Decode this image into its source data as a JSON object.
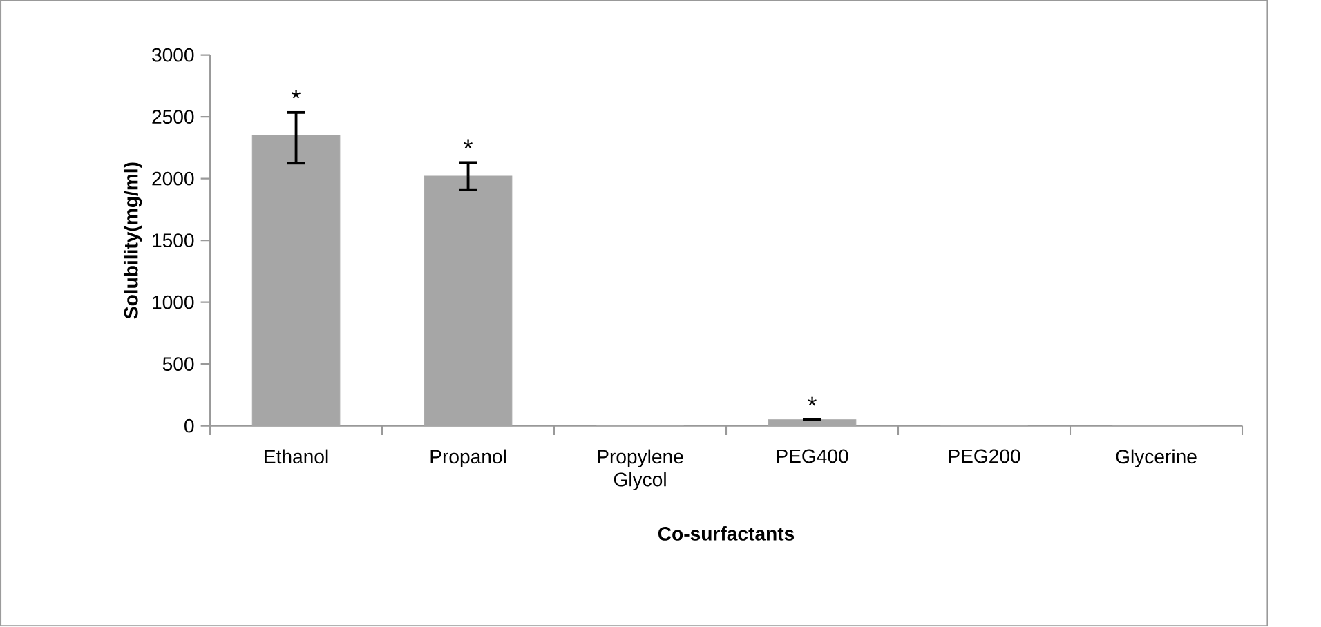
{
  "chart_data": {
    "type": "bar",
    "xlabel": "Co-surfactants",
    "ylabel": "Solubility(mg/ml)",
    "categories": [
      "Ethanol",
      "Propanol",
      "Propylene Glycol",
      "PEG400",
      "PEG200",
      "Glycerine"
    ],
    "values": [
      2350,
      2020,
      0,
      50,
      0,
      0
    ],
    "errors": [
      [
        2125,
        2535
      ],
      [
        1910,
        2130
      ],
      null,
      0,
      null,
      null
    ],
    "color": "#a6a6a6",
    "ylim": [
      0,
      3000
    ],
    "yticks": [
      0,
      500,
      1000,
      1500,
      2000,
      2500,
      3000
    ],
    "annotations": [
      "*",
      "*",
      "*"
    ]
  }
}
